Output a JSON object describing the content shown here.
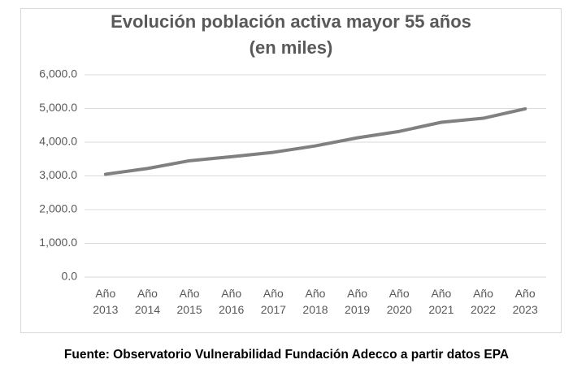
{
  "chart_data": {
    "type": "line",
    "title": "Evolución población activa mayor 55 años",
    "subtitle": "(en miles)",
    "categories": [
      "Año 2013",
      "Año 2014",
      "Año 2015",
      "Año 2016",
      "Año 2017",
      "Año 2018",
      "Año 2019",
      "Año 2020",
      "Año 2021",
      "Año 2022",
      "Año 2023"
    ],
    "values": [
      3050,
      3220,
      3450,
      3570,
      3700,
      3890,
      4130,
      4320,
      4590,
      4710,
      4990
    ],
    "color": "#808080",
    "ylim": [
      0,
      6000
    ],
    "yticks": [
      {
        "value": 0,
        "label": "0.0"
      },
      {
        "value": 1000,
        "label": "1,000.0"
      },
      {
        "value": 2000,
        "label": "2,000.0"
      },
      {
        "value": 3000,
        "label": "3,000.0"
      },
      {
        "value": 4000,
        "label": "4,000.0"
      },
      {
        "value": 5000,
        "label": "5,000.0"
      },
      {
        "value": 6000,
        "label": "6,000.0"
      }
    ],
    "grid": true,
    "source": "Fuente: Observatorio Vulnerabilidad Fundación Adecco a partir datos EPA"
  }
}
